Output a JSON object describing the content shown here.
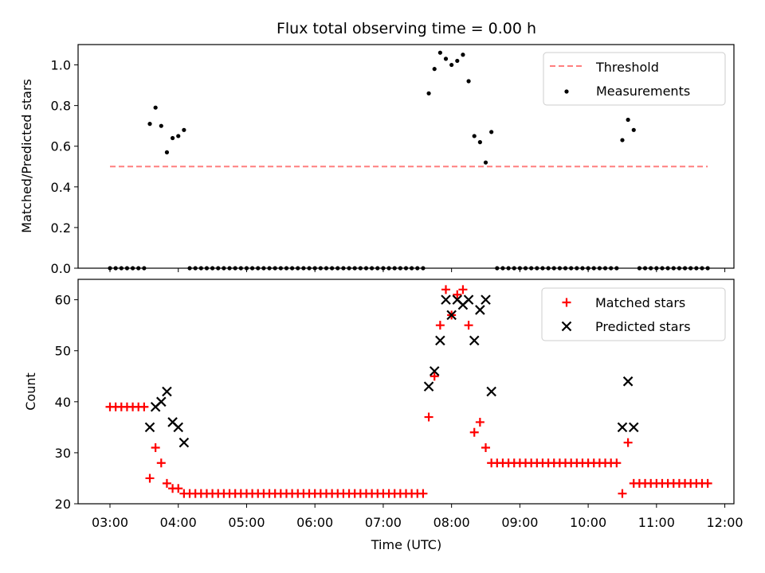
{
  "title": "Flux total observing time = 0.00 h",
  "xlabel": "Time (UTC)",
  "colors": {
    "threshold": "#ff7f7f",
    "measurements": "#000000",
    "matched": "#ff0000",
    "predicted": "#000000"
  },
  "chart_data": [
    {
      "type": "scatter",
      "ylabel": "Matched/Predicted stars",
      "xlim": [
        "02:32",
        "12:08"
      ],
      "ylim": [
        0,
        1.1
      ],
      "yticks": [
        "0.0",
        "0.2",
        "0.4",
        "0.6",
        "0.8",
        "1.0"
      ],
      "xticks_shown": false,
      "legend": {
        "position": "top-right",
        "entries": [
          "Threshold",
          "Measurements"
        ]
      },
      "threshold": {
        "name": "Threshold",
        "y": 0.5,
        "x_range": [
          "03:00",
          "11:45"
        ],
        "style": "dashed"
      },
      "series": [
        {
          "name": "Measurements",
          "points": [
            [
              "03:00",
              0
            ],
            [
              "03:05",
              0
            ],
            [
              "03:10",
              0
            ],
            [
              "03:15",
              0
            ],
            [
              "03:20",
              0
            ],
            [
              "03:25",
              0
            ],
            [
              "03:30",
              0
            ],
            [
              "03:35",
              0.71
            ],
            [
              "03:40",
              0.79
            ],
            [
              "03:45",
              0.7
            ],
            [
              "03:50",
              0.57
            ],
            [
              "03:55",
              0.64
            ],
            [
              "04:00",
              0.65
            ],
            [
              "04:05",
              0.68
            ],
            [
              "04:10",
              0
            ],
            [
              "04:15",
              0
            ],
            [
              "04:20",
              0
            ],
            [
              "04:25",
              0
            ],
            [
              "04:30",
              0
            ],
            [
              "04:35",
              0
            ],
            [
              "04:40",
              0
            ],
            [
              "04:45",
              0
            ],
            [
              "04:50",
              0
            ],
            [
              "04:55",
              0
            ],
            [
              "05:00",
              0
            ],
            [
              "05:05",
              0
            ],
            [
              "05:10",
              0
            ],
            [
              "05:15",
              0
            ],
            [
              "05:20",
              0
            ],
            [
              "05:25",
              0
            ],
            [
              "05:30",
              0
            ],
            [
              "05:35",
              0
            ],
            [
              "05:40",
              0
            ],
            [
              "05:45",
              0
            ],
            [
              "05:50",
              0
            ],
            [
              "05:55",
              0
            ],
            [
              "06:00",
              0
            ],
            [
              "06:05",
              0
            ],
            [
              "06:10",
              0
            ],
            [
              "06:15",
              0
            ],
            [
              "06:20",
              0
            ],
            [
              "06:25",
              0
            ],
            [
              "06:30",
              0
            ],
            [
              "06:35",
              0
            ],
            [
              "06:40",
              0
            ],
            [
              "06:45",
              0
            ],
            [
              "06:50",
              0
            ],
            [
              "06:55",
              0
            ],
            [
              "07:00",
              0
            ],
            [
              "07:05",
              0
            ],
            [
              "07:10",
              0
            ],
            [
              "07:15",
              0
            ],
            [
              "07:20",
              0
            ],
            [
              "07:25",
              0
            ],
            [
              "07:30",
              0
            ],
            [
              "07:35",
              0
            ],
            [
              "07:40",
              0.86
            ],
            [
              "07:45",
              0.98
            ],
            [
              "07:50",
              1.06
            ],
            [
              "07:55",
              1.03
            ],
            [
              "08:00",
              1.0
            ],
            [
              "08:05",
              1.02
            ],
            [
              "08:10",
              1.05
            ],
            [
              "08:15",
              0.92
            ],
            [
              "08:20",
              0.65
            ],
            [
              "08:25",
              0.62
            ],
            [
              "08:30",
              0.52
            ],
            [
              "08:35",
              0.67
            ],
            [
              "08:40",
              0
            ],
            [
              "08:45",
              0
            ],
            [
              "08:50",
              0
            ],
            [
              "08:55",
              0
            ],
            [
              "09:00",
              0
            ],
            [
              "09:05",
              0
            ],
            [
              "09:10",
              0
            ],
            [
              "09:15",
              0
            ],
            [
              "09:20",
              0
            ],
            [
              "09:25",
              0
            ],
            [
              "09:30",
              0
            ],
            [
              "09:35",
              0
            ],
            [
              "09:40",
              0
            ],
            [
              "09:45",
              0
            ],
            [
              "09:50",
              0
            ],
            [
              "09:55",
              0
            ],
            [
              "10:00",
              0
            ],
            [
              "10:05",
              0
            ],
            [
              "10:10",
              0
            ],
            [
              "10:15",
              0
            ],
            [
              "10:20",
              0
            ],
            [
              "10:25",
              0
            ],
            [
              "10:30",
              0.63
            ],
            [
              "10:35",
              0.73
            ],
            [
              "10:40",
              0.68
            ],
            [
              "10:45",
              0
            ],
            [
              "10:50",
              0
            ],
            [
              "10:55",
              0
            ],
            [
              "11:00",
              0
            ],
            [
              "11:05",
              0
            ],
            [
              "11:10",
              0
            ],
            [
              "11:15",
              0
            ],
            [
              "11:20",
              0
            ],
            [
              "11:25",
              0
            ],
            [
              "11:30",
              0
            ],
            [
              "11:35",
              0
            ],
            [
              "11:40",
              0
            ],
            [
              "11:45",
              0
            ]
          ]
        }
      ]
    },
    {
      "type": "scatter",
      "ylabel": "Count",
      "xlabel": "Time (UTC)",
      "xlim": [
        "02:32",
        "12:08"
      ],
      "ylim": [
        20,
        64
      ],
      "yticks": [
        "20",
        "30",
        "40",
        "50",
        "60"
      ],
      "xticks": [
        "03:00",
        "04:00",
        "05:00",
        "06:00",
        "07:00",
        "08:00",
        "09:00",
        "10:00",
        "11:00",
        "12:00"
      ],
      "legend": {
        "position": "top-right",
        "entries": [
          "Matched stars",
          "Predicted stars"
        ]
      },
      "series": [
        {
          "name": "Matched stars",
          "marker": "+",
          "points": [
            [
              "03:00",
              39
            ],
            [
              "03:05",
              39
            ],
            [
              "03:10",
              39
            ],
            [
              "03:15",
              39
            ],
            [
              "03:20",
              39
            ],
            [
              "03:25",
              39
            ],
            [
              "03:30",
              39
            ],
            [
              "03:35",
              25
            ],
            [
              "03:40",
              31
            ],
            [
              "03:45",
              28
            ],
            [
              "03:50",
              24
            ],
            [
              "03:55",
              23
            ],
            [
              "04:00",
              23
            ],
            [
              "04:05",
              22
            ],
            [
              "04:10",
              22
            ],
            [
              "04:15",
              22
            ],
            [
              "04:20",
              22
            ],
            [
              "04:25",
              22
            ],
            [
              "04:30",
              22
            ],
            [
              "04:35",
              22
            ],
            [
              "04:40",
              22
            ],
            [
              "04:45",
              22
            ],
            [
              "04:50",
              22
            ],
            [
              "04:55",
              22
            ],
            [
              "05:00",
              22
            ],
            [
              "05:05",
              22
            ],
            [
              "05:10",
              22
            ],
            [
              "05:15",
              22
            ],
            [
              "05:20",
              22
            ],
            [
              "05:25",
              22
            ],
            [
              "05:30",
              22
            ],
            [
              "05:35",
              22
            ],
            [
              "05:40",
              22
            ],
            [
              "05:45",
              22
            ],
            [
              "05:50",
              22
            ],
            [
              "05:55",
              22
            ],
            [
              "06:00",
              22
            ],
            [
              "06:05",
              22
            ],
            [
              "06:10",
              22
            ],
            [
              "06:15",
              22
            ],
            [
              "06:20",
              22
            ],
            [
              "06:25",
              22
            ],
            [
              "06:30",
              22
            ],
            [
              "06:35",
              22
            ],
            [
              "06:40",
              22
            ],
            [
              "06:45",
              22
            ],
            [
              "06:50",
              22
            ],
            [
              "06:55",
              22
            ],
            [
              "07:00",
              22
            ],
            [
              "07:05",
              22
            ],
            [
              "07:10",
              22
            ],
            [
              "07:15",
              22
            ],
            [
              "07:20",
              22
            ],
            [
              "07:25",
              22
            ],
            [
              "07:30",
              22
            ],
            [
              "07:35",
              22
            ],
            [
              "07:40",
              37
            ],
            [
              "07:45",
              45
            ],
            [
              "07:50",
              55
            ],
            [
              "07:55",
              62
            ],
            [
              "08:00",
              57
            ],
            [
              "08:05",
              61
            ],
            [
              "08:10",
              62
            ],
            [
              "08:15",
              55
            ],
            [
              "08:20",
              34
            ],
            [
              "08:25",
              36
            ],
            [
              "08:30",
              31
            ],
            [
              "08:35",
              28
            ],
            [
              "08:40",
              28
            ],
            [
              "08:45",
              28
            ],
            [
              "08:50",
              28
            ],
            [
              "08:55",
              28
            ],
            [
              "09:00",
              28
            ],
            [
              "09:05",
              28
            ],
            [
              "09:10",
              28
            ],
            [
              "09:15",
              28
            ],
            [
              "09:20",
              28
            ],
            [
              "09:25",
              28
            ],
            [
              "09:30",
              28
            ],
            [
              "09:35",
              28
            ],
            [
              "09:40",
              28
            ],
            [
              "09:45",
              28
            ],
            [
              "09:50",
              28
            ],
            [
              "09:55",
              28
            ],
            [
              "10:00",
              28
            ],
            [
              "10:05",
              28
            ],
            [
              "10:10",
              28
            ],
            [
              "10:15",
              28
            ],
            [
              "10:20",
              28
            ],
            [
              "10:25",
              28
            ],
            [
              "10:30",
              22
            ],
            [
              "10:35",
              32
            ],
            [
              "10:40",
              24
            ],
            [
              "10:45",
              24
            ],
            [
              "10:50",
              24
            ],
            [
              "10:55",
              24
            ],
            [
              "11:00",
              24
            ],
            [
              "11:05",
              24
            ],
            [
              "11:10",
              24
            ],
            [
              "11:15",
              24
            ],
            [
              "11:20",
              24
            ],
            [
              "11:25",
              24
            ],
            [
              "11:30",
              24
            ],
            [
              "11:35",
              24
            ],
            [
              "11:40",
              24
            ],
            [
              "11:45",
              24
            ]
          ]
        },
        {
          "name": "Predicted stars",
          "marker": "x",
          "points": [
            [
              "03:35",
              35
            ],
            [
              "03:40",
              39
            ],
            [
              "03:45",
              40
            ],
            [
              "03:50",
              42
            ],
            [
              "03:55",
              36
            ],
            [
              "04:00",
              35
            ],
            [
              "04:05",
              32
            ],
            [
              "07:40",
              43
            ],
            [
              "07:45",
              46
            ],
            [
              "07:50",
              52
            ],
            [
              "07:55",
              60
            ],
            [
              "08:00",
              57
            ],
            [
              "08:05",
              60
            ],
            [
              "08:10",
              59
            ],
            [
              "08:15",
              60
            ],
            [
              "08:20",
              52
            ],
            [
              "08:25",
              58
            ],
            [
              "08:30",
              60
            ],
            [
              "08:35",
              42
            ],
            [
              "10:30",
              35
            ],
            [
              "10:35",
              44
            ],
            [
              "10:40",
              35
            ]
          ]
        }
      ]
    }
  ]
}
